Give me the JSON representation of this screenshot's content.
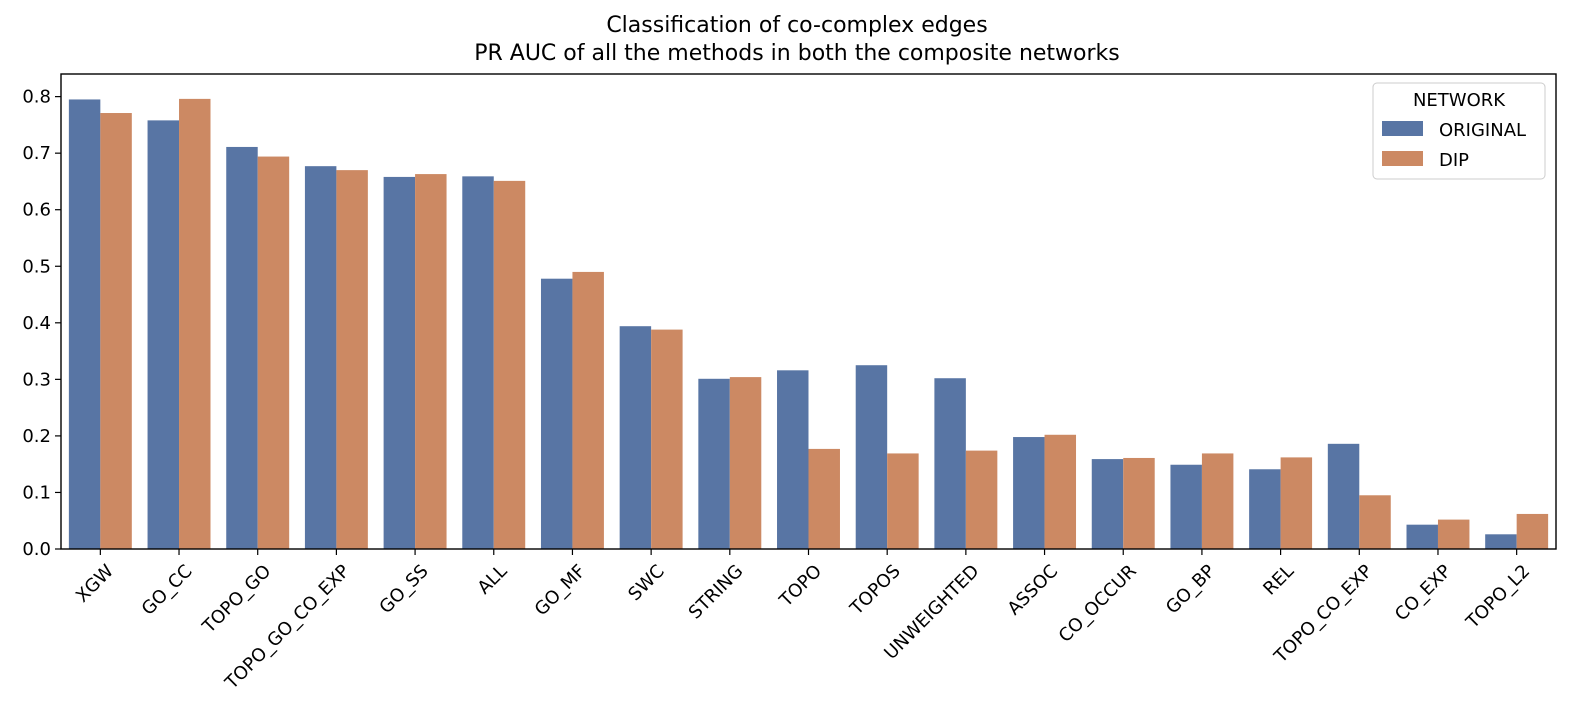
{
  "chart_data": {
    "type": "bar",
    "title": "Classification of co-complex edges",
    "subtitle": "PR AUC of all the methods in both the composite networks",
    "xlabel": "",
    "ylabel": "",
    "ylim": [
      0,
      0.84
    ],
    "yticks": [
      "0.0",
      "0.1",
      "0.2",
      "0.3",
      "0.4",
      "0.5",
      "0.6",
      "0.7",
      "0.8"
    ],
    "grid": false,
    "legend": {
      "title": "NETWORK",
      "placement": "top-right"
    },
    "categories": [
      "XGW",
      "GO_CC",
      "TOPO_GO",
      "TOPO_GO_CO_EXP",
      "GO_SS",
      "ALL",
      "GO_MF",
      "SWC",
      "STRING",
      "TOPO",
      "TOPOS",
      "UNWEIGHTED",
      "ASSOC",
      "CO_OCCUR",
      "GO_BP",
      "REL",
      "TOPO_CO_EXP",
      "CO_EXP",
      "TOPO_L2"
    ],
    "series": [
      {
        "name": "ORIGINAL",
        "color": "#5875a4",
        "values": [
          0.795,
          0.758,
          0.711,
          0.677,
          0.658,
          0.659,
          0.478,
          0.394,
          0.301,
          0.316,
          0.325,
          0.302,
          0.198,
          0.159,
          0.149,
          0.141,
          0.186,
          0.043,
          0.026
        ]
      },
      {
        "name": "DIP",
        "color": "#cc8963",
        "values": [
          0.771,
          0.796,
          0.694,
          0.67,
          0.663,
          0.651,
          0.49,
          0.388,
          0.304,
          0.177,
          0.169,
          0.174,
          0.202,
          0.161,
          0.169,
          0.162,
          0.095,
          0.052,
          0.062
        ]
      }
    ]
  }
}
